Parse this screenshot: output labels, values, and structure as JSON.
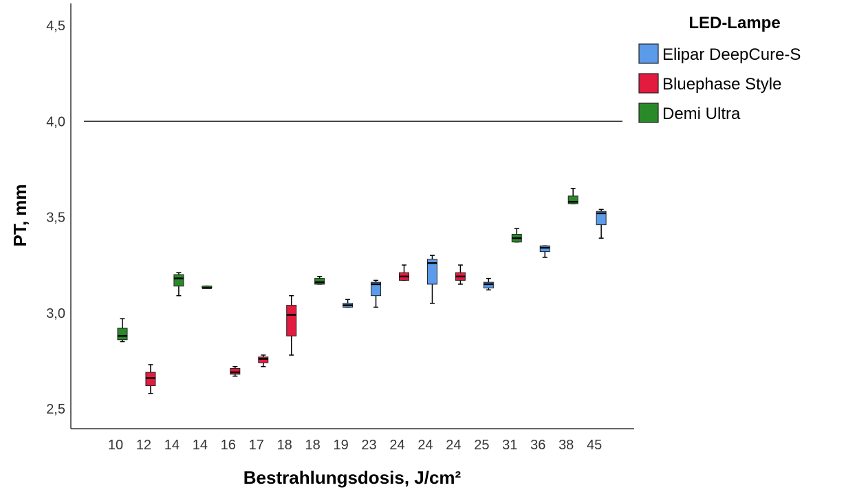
{
  "chart_data": {
    "type": "boxplot",
    "xlabel": "Bestrahlungsdosis, J/cm²",
    "ylabel": "PT, mm",
    "ylim": [
      2.4,
      4.6
    ],
    "yticks": [
      "2,5",
      "3,0",
      "3,5",
      "4,0",
      "4,5"
    ],
    "ytick_values": [
      2.5,
      3.0,
      3.5,
      4.0,
      4.5
    ],
    "reference_line": 4.0,
    "grid": false,
    "legend": {
      "title": "LED-Lampe",
      "placement": "top-right",
      "entries": [
        {
          "name": "Elipar DeepCure-S",
          "color": "#5b9bea"
        },
        {
          "name": "Bluephase Style",
          "color": "#e31b3e"
        },
        {
          "name": "Demi Ultra",
          "color": "#2a8a2a"
        }
      ]
    },
    "categories": [
      "10",
      "12",
      "14",
      "14",
      "16",
      "17",
      "18",
      "18",
      "19",
      "23",
      "24",
      "24",
      "24",
      "25",
      "31",
      "36",
      "38",
      "45"
    ],
    "boxes": [
      {
        "category": "10",
        "series": "Demi Ultra",
        "min": 2.85,
        "q1": 2.86,
        "median": 2.88,
        "q3": 2.92,
        "max": 2.97
      },
      {
        "category": "12",
        "series": "Bluephase Style",
        "min": 2.58,
        "q1": 2.62,
        "median": 2.66,
        "q3": 2.69,
        "max": 2.73
      },
      {
        "category": "14",
        "series": "Demi Ultra",
        "min": 3.09,
        "q1": 3.14,
        "median": 3.18,
        "q3": 3.2,
        "max": 3.21
      },
      {
        "category": "14",
        "series": "Demi Ultra",
        "min": 3.13,
        "q1": 3.13,
        "median": 3.13,
        "q3": 3.14,
        "max": 3.14
      },
      {
        "category": "16",
        "series": "Bluephase Style",
        "min": 2.67,
        "q1": 2.68,
        "median": 2.69,
        "q3": 2.71,
        "max": 2.72
      },
      {
        "category": "17",
        "series": "Bluephase Style",
        "min": 2.72,
        "q1": 2.74,
        "median": 2.76,
        "q3": 2.77,
        "max": 2.78
      },
      {
        "category": "18",
        "series": "Bluephase Style",
        "min": 2.78,
        "q1": 2.88,
        "median": 2.99,
        "q3": 3.04,
        "max": 3.09
      },
      {
        "category": "18",
        "series": "Demi Ultra",
        "min": 3.15,
        "q1": 3.15,
        "median": 3.16,
        "q3": 3.18,
        "max": 3.19
      },
      {
        "category": "19",
        "series": "Elipar DeepCure-S",
        "min": 3.03,
        "q1": 3.03,
        "median": 3.04,
        "q3": 3.05,
        "max": 3.07
      },
      {
        "category": "23",
        "series": "Elipar DeepCure-S",
        "min": 3.03,
        "q1": 3.09,
        "median": 3.15,
        "q3": 3.16,
        "max": 3.17
      },
      {
        "category": "24",
        "series": "Bluephase Style",
        "min": 3.17,
        "q1": 3.17,
        "median": 3.19,
        "q3": 3.21,
        "max": 3.25
      },
      {
        "category": "24",
        "series": "Elipar DeepCure-S",
        "min": 3.05,
        "q1": 3.15,
        "median": 3.26,
        "q3": 3.28,
        "max": 3.3
      },
      {
        "category": "24",
        "series": "Bluephase Style",
        "min": 3.15,
        "q1": 3.17,
        "median": 3.19,
        "q3": 3.21,
        "max": 3.25
      },
      {
        "category": "25",
        "series": "Elipar DeepCure-S",
        "min": 3.12,
        "q1": 3.13,
        "median": 3.15,
        "q3": 3.16,
        "max": 3.18
      },
      {
        "category": "31",
        "series": "Demi Ultra",
        "min": 3.37,
        "q1": 3.37,
        "median": 3.39,
        "q3": 3.41,
        "max": 3.44
      },
      {
        "category": "36",
        "series": "Elipar DeepCure-S",
        "min": 3.29,
        "q1": 3.32,
        "median": 3.34,
        "q3": 3.35,
        "max": 3.35
      },
      {
        "category": "38",
        "series": "Demi Ultra",
        "min": 3.57,
        "q1": 3.57,
        "median": 3.58,
        "q3": 3.61,
        "max": 3.65
      },
      {
        "category": "45",
        "series": "Elipar DeepCure-S",
        "min": 3.39,
        "q1": 3.46,
        "median": 3.52,
        "q3": 3.53,
        "max": 3.54
      }
    ]
  }
}
